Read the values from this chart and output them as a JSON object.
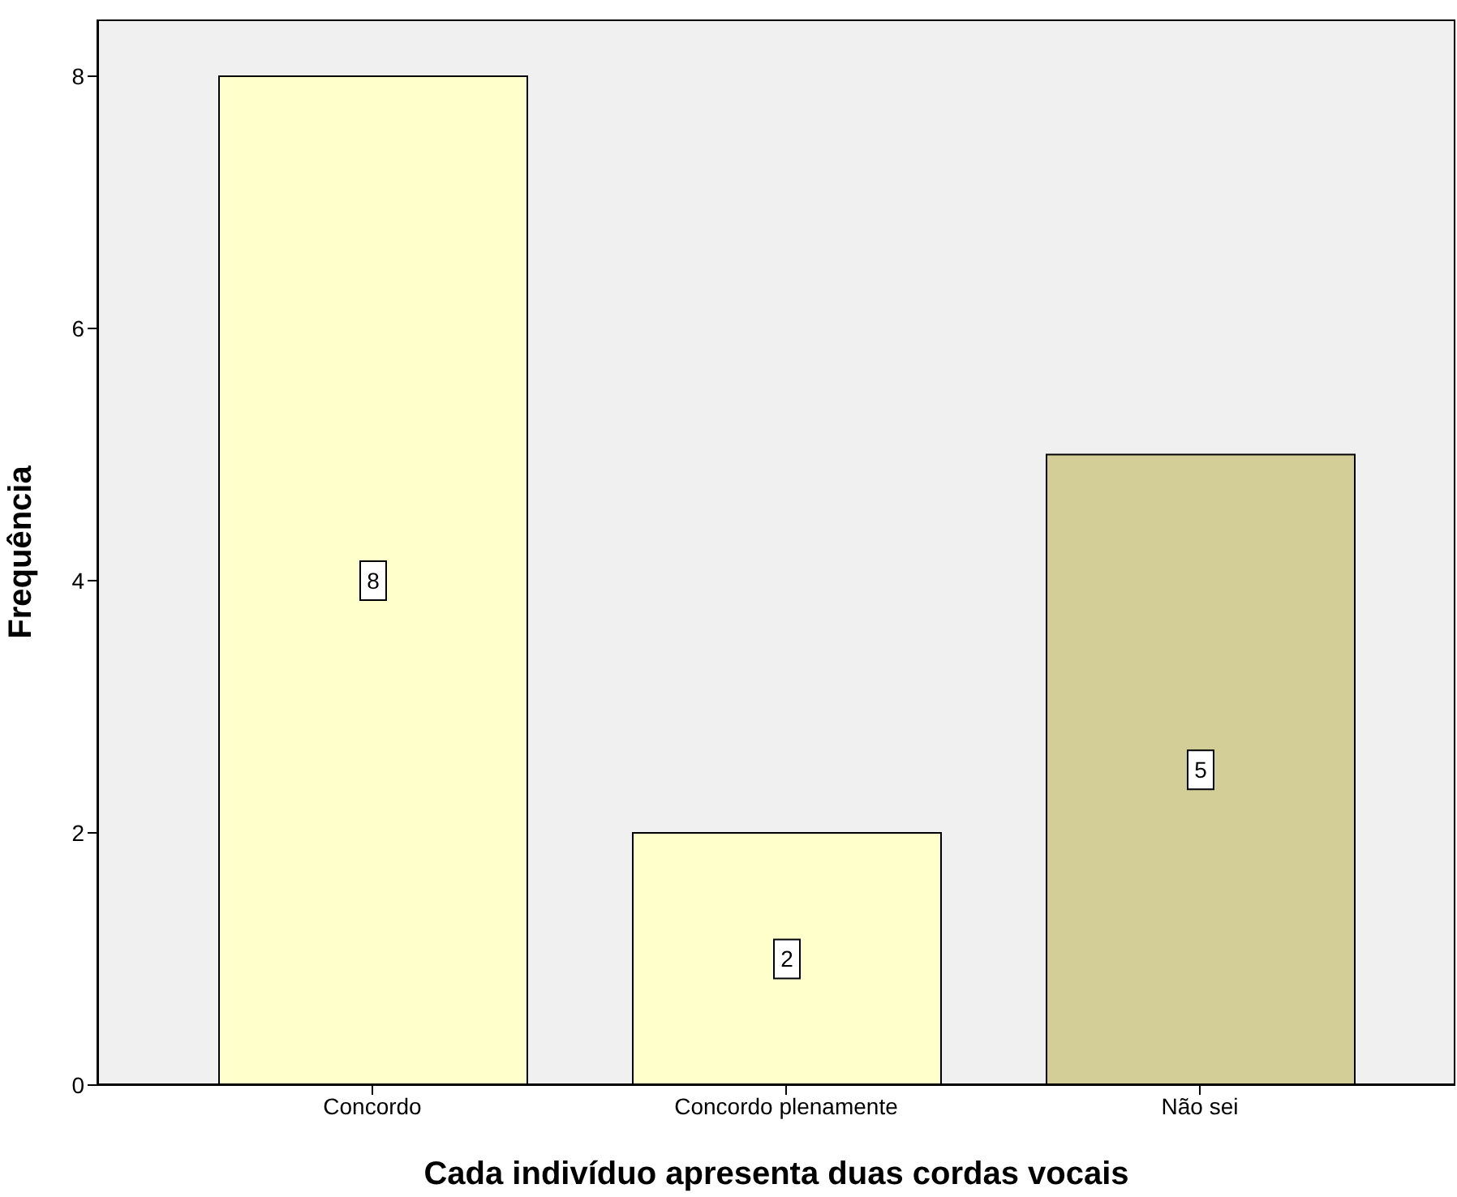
{
  "chart_data": {
    "type": "bar",
    "xlabel": "Cada indivíduo apresenta duas cordas vocais",
    "ylabel": "Frequência",
    "categories": [
      "Concordo",
      "Concordo plenamente",
      "Não sei"
    ],
    "values": [
      8,
      2,
      5
    ],
    "colors": [
      "#ffffcc",
      "#ffffcc",
      "#d3ce98"
    ],
    "ylim": [
      0,
      8.45
    ],
    "yticks": [
      0,
      2,
      4,
      6,
      8
    ],
    "data_labels": true
  }
}
